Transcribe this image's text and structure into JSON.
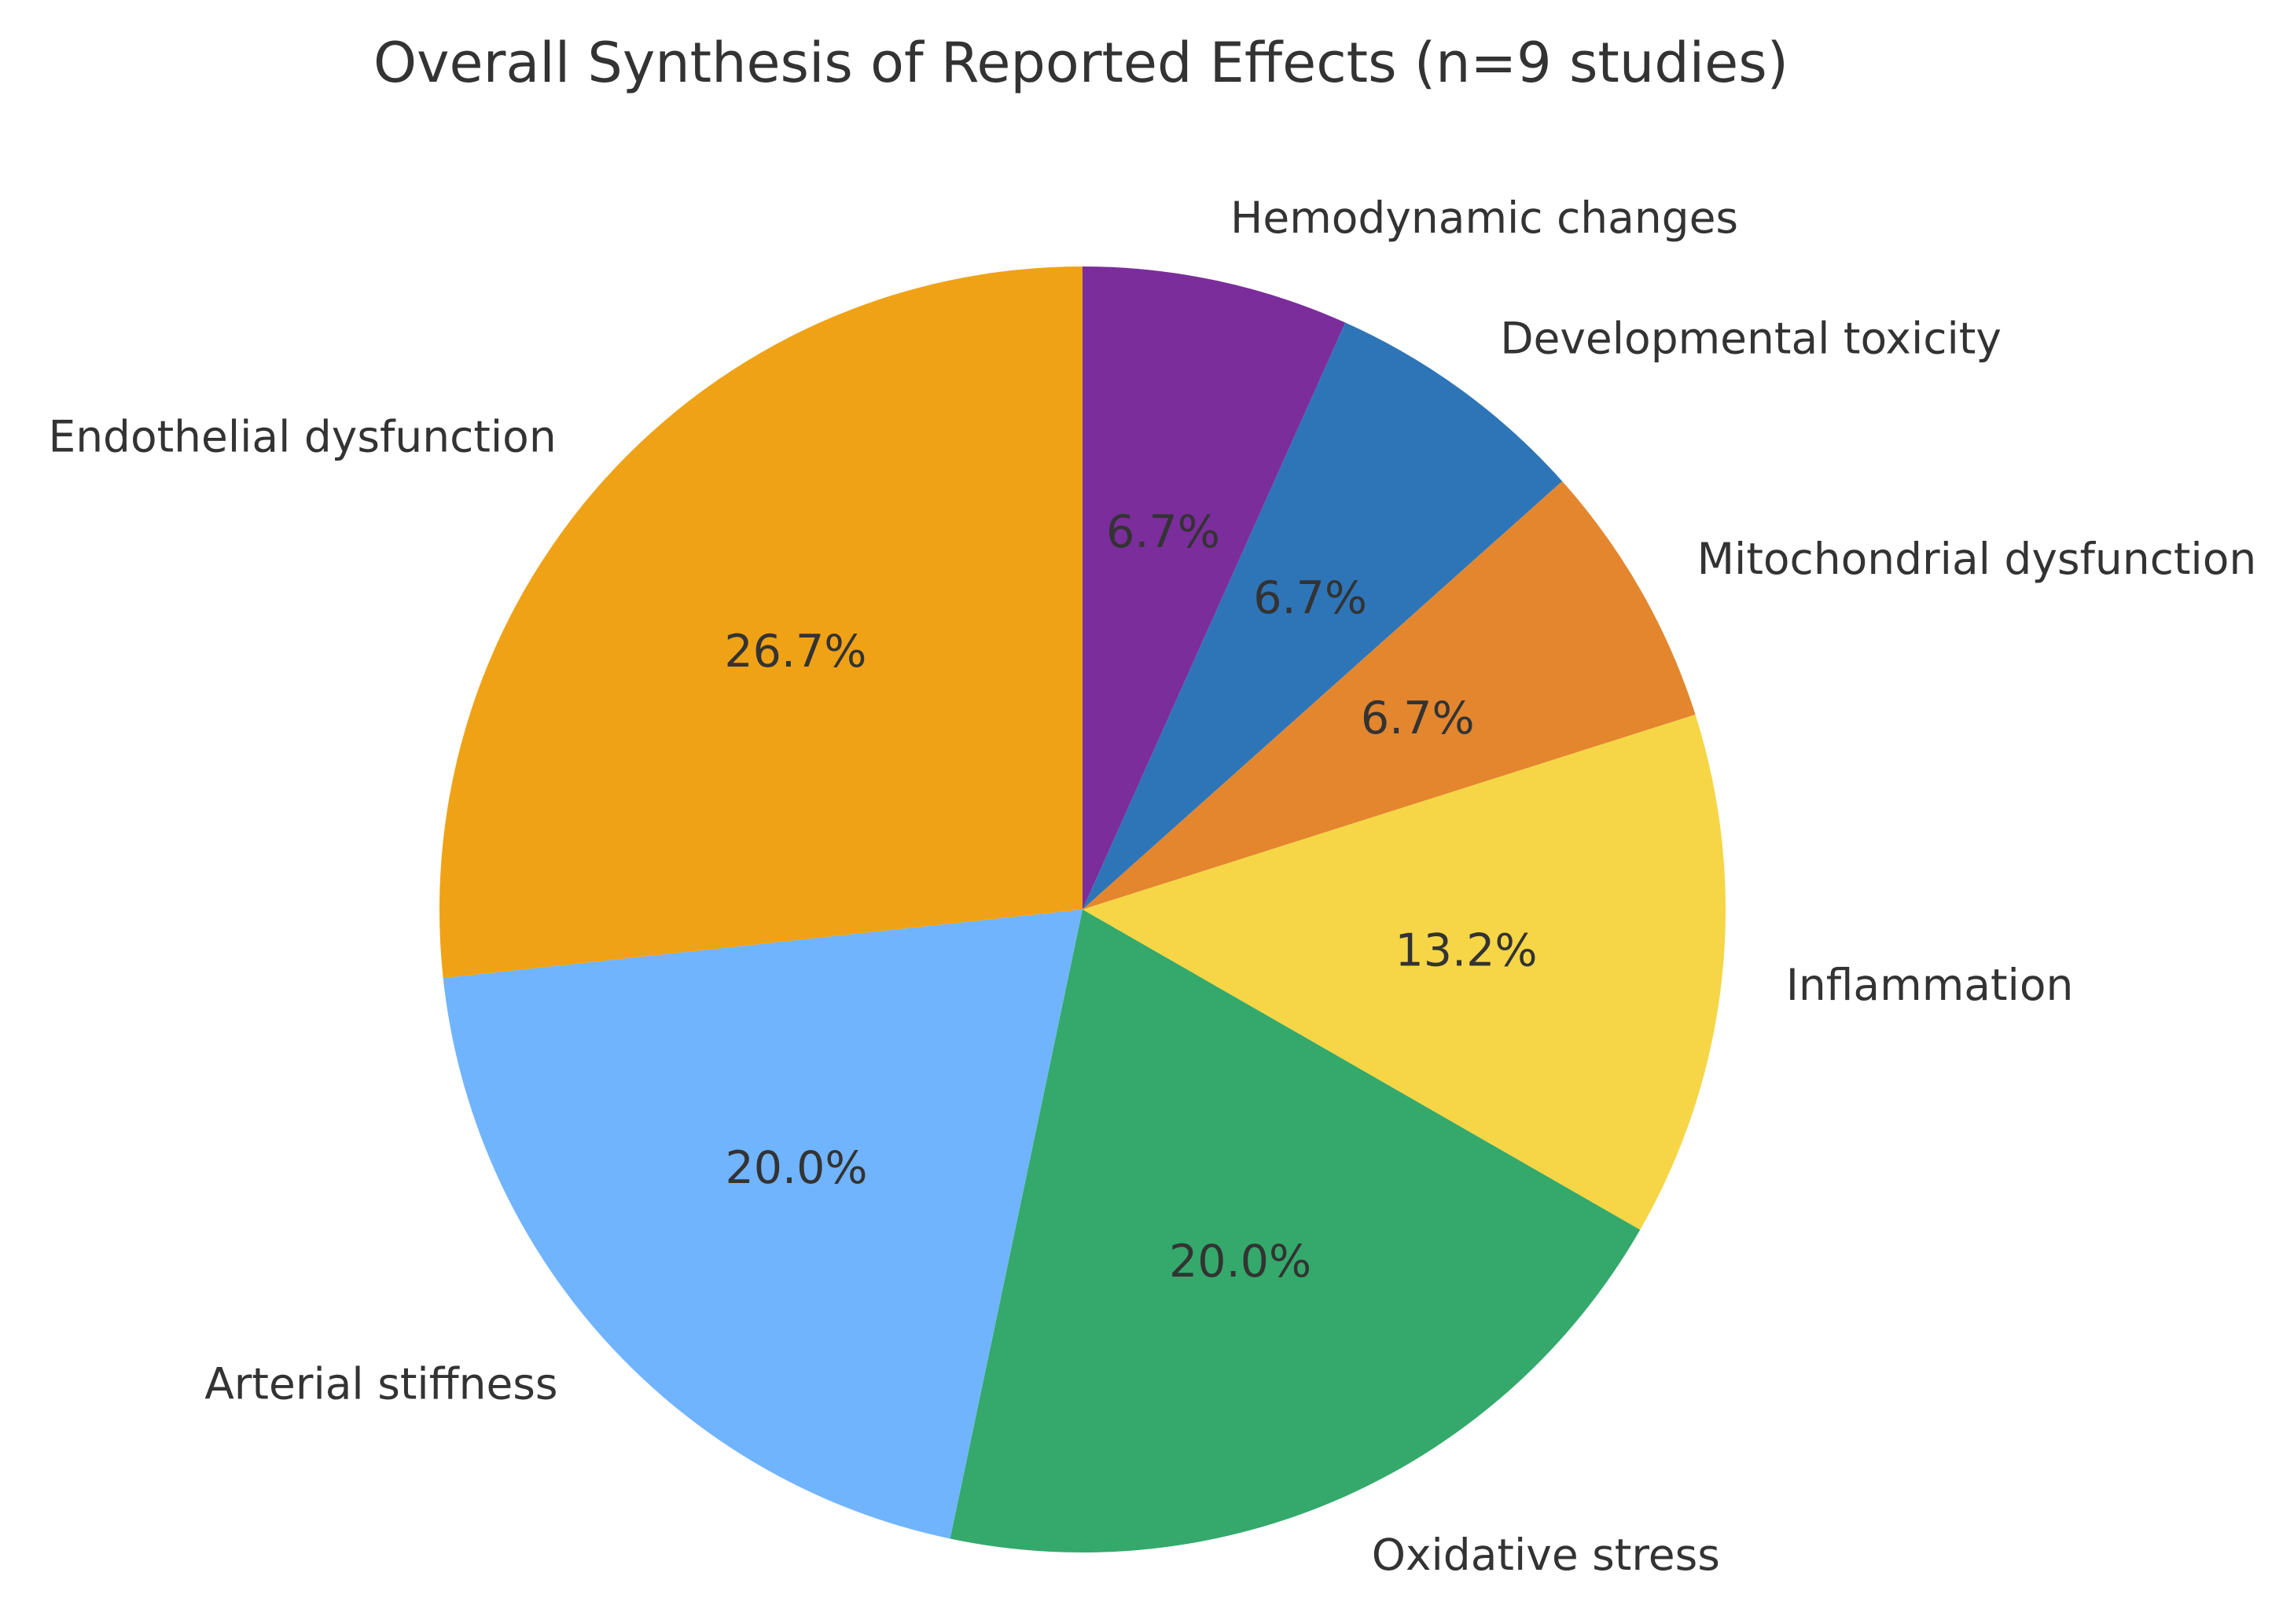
{
  "chart_data": {
    "type": "pie",
    "title": "Overall Synthesis of Reported Effects (n=9 studies)",
    "start_angle_deg": 90,
    "direction": "clockwise",
    "slices": [
      {
        "label": "Hemodynamic changes",
        "value": 6.7,
        "pct_label": "6.7%",
        "color": "#7B2D9B"
      },
      {
        "label": "Developmental toxicity",
        "value": 6.7,
        "pct_label": "6.7%",
        "color": "#2E75B8"
      },
      {
        "label": "Mitochondrial dysfunction",
        "value": 6.7,
        "pct_label": "6.7%",
        "color": "#E3862E"
      },
      {
        "label": "Inflammation",
        "value": 13.2,
        "pct_label": "13.2%",
        "color": "#F6D646"
      },
      {
        "label": "Oxidative stress",
        "value": 20.0,
        "pct_label": "20.0%",
        "color": "#34A96B"
      },
      {
        "label": "Arterial stiffness",
        "value": 20.0,
        "pct_label": "20.0%",
        "color": "#70B4FD"
      },
      {
        "label": "Endothelial dysfunction",
        "value": 26.7,
        "pct_label": "26.7%",
        "color": "#F0A216"
      }
    ]
  }
}
